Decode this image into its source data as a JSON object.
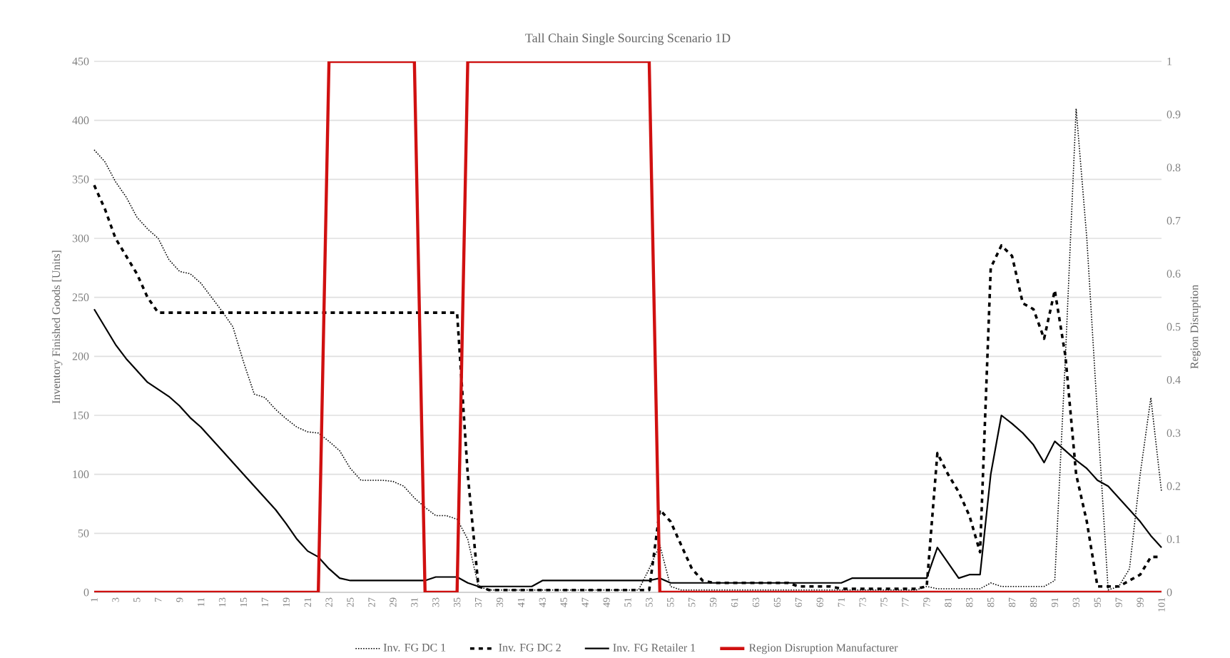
{
  "chart_data": {
    "type": "line",
    "title": "Tall Chain Single Sourcing Scenario 1D",
    "ylabel": "Inventory Finished Goods [Units]",
    "y2label": "Region Disruption",
    "categories": [
      "1",
      null,
      "3",
      null,
      "5",
      null,
      "7",
      null,
      "9",
      null,
      "11",
      null,
      "13",
      null,
      "15",
      null,
      "17",
      null,
      "19",
      null,
      "21",
      null,
      "23",
      null,
      "25",
      null,
      "27",
      null,
      "29",
      null,
      "31",
      null,
      "33",
      null,
      "35",
      null,
      "37",
      null,
      "39",
      null,
      "41",
      null,
      "43",
      null,
      "45",
      null,
      "47",
      null,
      "49",
      null,
      "51",
      null,
      "53",
      null,
      "55",
      null,
      "57",
      null,
      "59",
      null,
      "61",
      null,
      "63",
      null,
      "65",
      null,
      "67",
      null,
      "69",
      null,
      "71",
      null,
      "73",
      null,
      "75",
      null,
      "77",
      null,
      "79",
      null,
      "81",
      null,
      "83",
      null,
      "85",
      null,
      "87",
      null,
      "89",
      null,
      "91",
      null,
      "93",
      null,
      "95",
      null,
      "97",
      null,
      "99",
      null,
      "101"
    ],
    "ylim": [
      0,
      450
    ],
    "yticks": [
      0,
      50,
      100,
      150,
      200,
      250,
      300,
      350,
      400,
      450
    ],
    "y2lim": [
      0,
      1
    ],
    "y2ticks": [
      0,
      0.1,
      0.2,
      0.3,
      0.4,
      0.5,
      0.6,
      0.7,
      0.8,
      0.9,
      1
    ],
    "grid": "y",
    "legend": "bottom",
    "series": [
      {
        "name": "Inv. FG DC 1",
        "color": "#000000",
        "line_style": "dotted",
        "values": [
          375,
          365,
          348,
          335,
          318,
          308,
          300,
          282,
          272,
          270,
          262,
          250,
          238,
          225,
          195,
          168,
          165,
          155,
          147,
          140,
          136,
          135,
          128,
          120,
          105,
          95,
          95,
          95,
          94,
          90,
          80,
          72,
          65,
          65,
          62,
          45,
          5,
          2,
          2,
          2,
          2,
          2,
          2,
          2,
          2,
          2,
          2,
          2,
          2,
          2,
          2,
          2,
          20,
          40,
          5,
          2,
          2,
          2,
          2,
          2,
          2,
          2,
          2,
          2,
          2,
          2,
          2,
          2,
          2,
          2,
          2,
          2,
          2,
          2,
          2,
          2,
          2,
          2,
          5,
          3,
          3,
          3,
          3,
          3,
          8,
          5,
          5,
          5,
          5,
          5,
          10,
          200,
          410,
          300,
          150,
          2,
          5,
          20,
          100,
          165,
          85
        ]
      },
      {
        "name": "Inv. FG DC 2",
        "color": "#000000",
        "line_style": "dashed",
        "values": [
          345,
          325,
          300,
          285,
          270,
          250,
          237,
          237,
          237,
          237,
          237,
          237,
          237,
          237,
          237,
          237,
          237,
          237,
          237,
          237,
          237,
          237,
          237,
          237,
          237,
          237,
          237,
          237,
          237,
          237,
          237,
          237,
          237,
          237,
          237,
          100,
          5,
          2,
          2,
          2,
          2,
          2,
          2,
          2,
          2,
          2,
          2,
          2,
          2,
          2,
          2,
          2,
          2,
          70,
          60,
          40,
          20,
          10,
          8,
          8,
          8,
          8,
          8,
          8,
          8,
          8,
          5,
          5,
          5,
          5,
          3,
          3,
          3,
          3,
          3,
          3,
          3,
          3,
          5,
          118,
          100,
          85,
          65,
          34,
          275,
          294,
          285,
          245,
          240,
          215,
          256,
          200,
          100,
          60,
          5,
          5,
          5,
          10,
          15,
          30,
          30
        ]
      },
      {
        "name": "Inv. FG Retailer 1",
        "color": "#000000",
        "line_style": "solid",
        "values": [
          240,
          225,
          210,
          198,
          188,
          178,
          172,
          166,
          158,
          148,
          140,
          130,
          120,
          110,
          100,
          90,
          80,
          70,
          58,
          45,
          35,
          30,
          20,
          12,
          10,
          10,
          10,
          10,
          10,
          10,
          10,
          10,
          13,
          13,
          13,
          8,
          5,
          5,
          5,
          5,
          5,
          5,
          10,
          10,
          10,
          10,
          10,
          10,
          10,
          10,
          10,
          10,
          10,
          12,
          8,
          8,
          8,
          8,
          8,
          8,
          8,
          8,
          8,
          8,
          8,
          8,
          8,
          8,
          8,
          8,
          8,
          12,
          12,
          12,
          12,
          12,
          12,
          12,
          12,
          38,
          25,
          12,
          15,
          15,
          100,
          150,
          143,
          135,
          125,
          110,
          128,
          120,
          112,
          105,
          95,
          90,
          80,
          70,
          60,
          48,
          38
        ]
      },
      {
        "name": "Region Disruption Manufacturer",
        "color": "#d01010",
        "line_style": "solid",
        "axis": "y2",
        "values": [
          0,
          0,
          0,
          0,
          0,
          0,
          0,
          0,
          0,
          0,
          0,
          0,
          0,
          0,
          0,
          0,
          0,
          0,
          0,
          0,
          0,
          0,
          1,
          1,
          1,
          1,
          1,
          1,
          1,
          1,
          1,
          0,
          0,
          0,
          0,
          1,
          1,
          1,
          1,
          1,
          1,
          1,
          1,
          1,
          1,
          1,
          1,
          1,
          1,
          1,
          1,
          1,
          1,
          0,
          0,
          0,
          0,
          0,
          0,
          0,
          0,
          0,
          0,
          0,
          0,
          0,
          0,
          0,
          0,
          0,
          0,
          0,
          0,
          0,
          0,
          0,
          0,
          0,
          0,
          0,
          0,
          0,
          0,
          0,
          0,
          0,
          0,
          0,
          0,
          0,
          0,
          0,
          0,
          0,
          0,
          0,
          0,
          0,
          0,
          0,
          0
        ]
      }
    ]
  }
}
